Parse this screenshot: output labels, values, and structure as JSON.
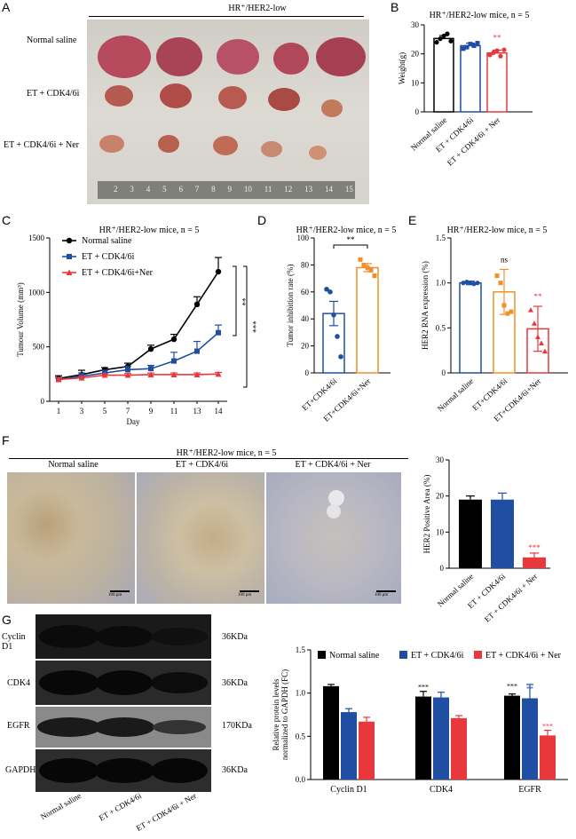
{
  "panel_letters": [
    "A",
    "B",
    "C",
    "D",
    "E",
    "F",
    "G"
  ],
  "panel_a": {
    "header": "HR⁺/HER2-low",
    "row_labels": [
      "Normal saline",
      "ET + CDK4/6i",
      "ET + CDK4/6i + Ner"
    ],
    "ruler_numbers": [
      "2",
      "3",
      "4",
      "5",
      "6",
      "7",
      "8",
      "9",
      "10",
      "11",
      "12",
      "13",
      "14",
      "15"
    ]
  },
  "ihc": {
    "header": "HR⁺/HER2-low mice, n = 5",
    "labels": [
      "Normal saline",
      "ET + CDK4/6i",
      "ET + CDK4/6i + Ner"
    ],
    "scale": "100 μm"
  },
  "blot": {
    "rows": [
      {
        "name": "Cyclin D1",
        "kda": "36KDa"
      },
      {
        "name": "CDK4",
        "kda": "36KDa"
      },
      {
        "name": "EGFR",
        "kda": "170KDa"
      },
      {
        "name": "GAPDH",
        "kda": "36KDa"
      }
    ],
    "lanes": [
      "Normal saline",
      "ET + CDK4/6i",
      "ET + CDK4/6i + Ner"
    ]
  },
  "colors": {
    "black": "#000000",
    "blue": "#1f4ea3",
    "red": "#e8383d",
    "orange": "#f0902a"
  },
  "chart_data": [
    {
      "id": "B",
      "type": "bar",
      "title": "HR⁺/HER2-low mice, n = 5",
      "ylabel": "Weight(g)",
      "ylim": [
        0,
        30
      ],
      "yticks": [
        "0",
        "10",
        "20",
        "30"
      ],
      "categories": [
        "Normal saline",
        "ET + CDK4/6i",
        "ET + CDK4/6i + Ner"
      ],
      "values": [
        25.3,
        22.8,
        20.3
      ],
      "errors": [
        1.0,
        0.9,
        1.0
      ],
      "points": [
        [
          24.0,
          25.2,
          26.2,
          26.9,
          24.4
        ],
        [
          21.8,
          22.3,
          23.4,
          22.8,
          23.7
        ],
        [
          19.6,
          20.4,
          21.1,
          19.2,
          21.4
        ]
      ],
      "sig": [
        "",
        "",
        "**"
      ]
    },
    {
      "id": "C",
      "type": "line",
      "title": "HR⁺/HER2-low mice, n = 5",
      "ylabel": "Tumour Volume (mm³)",
      "xlabel": "Day",
      "x": [
        1,
        3,
        5,
        7,
        9,
        11,
        13,
        14
      ],
      "xticks": [
        "1",
        "3",
        "5",
        "7",
        "9",
        "11",
        "13",
        "14"
      ],
      "ylim": [
        0,
        1500
      ],
      "yticks": [
        "0",
        "500",
        "1000",
        "1500"
      ],
      "series": [
        {
          "name": "Normal saline",
          "values": [
            210,
            245,
            290,
            320,
            480,
            570,
            890,
            1190
          ],
          "errors": [
            25,
            40,
            20,
            30,
            35,
            45,
            70,
            130
          ]
        },
        {
          "name": "ET + CDK4/6i",
          "values": [
            200,
            230,
            260,
            290,
            300,
            370,
            460,
            630
          ],
          "errors": [
            20,
            30,
            25,
            30,
            30,
            80,
            90,
            70
          ]
        },
        {
          "name": "ET + CDK4/6i+Ner",
          "values": [
            200,
            215,
            240,
            240,
            245,
            245,
            245,
            250
          ],
          "errors": [
            15,
            15,
            15,
            15,
            15,
            15,
            15,
            15
          ]
        }
      ],
      "sig": [
        "**",
        "***"
      ]
    },
    {
      "id": "D",
      "type": "bar",
      "title": "HR⁺/HER2-low mice, n = 5",
      "ylabel": "Tumor inhibition rate (%)",
      "ylim": [
        0,
        100
      ],
      "yticks": [
        "0",
        "20",
        "40",
        "60",
        "80",
        "100"
      ],
      "categories": [
        "ET+CDK4/6i",
        "ET+CDK4/6i+Ner"
      ],
      "values": [
        44,
        78
      ],
      "errors": [
        9,
        3
      ],
      "points": [
        [
          62,
          60,
          43,
          27,
          12
        ],
        [
          84,
          80,
          78,
          76,
          72
        ]
      ],
      "sig": "**"
    },
    {
      "id": "E",
      "type": "bar",
      "title": "HR⁺/HER2-low mice, n = 5",
      "ylabel": "HER2 RNA expression (%)",
      "ylim": [
        0,
        1.5
      ],
      "yticks": [
        "0",
        "0.5",
        "1.0",
        "1.5"
      ],
      "categories": [
        "Normal saline",
        "ET+CDK4/6i",
        "ET+CDK4/6i+Ner"
      ],
      "values": [
        1.0,
        0.9,
        0.49
      ],
      "errors": [
        0.02,
        0.25,
        0.25
      ],
      "points": [
        [
          1.0,
          1.01,
          1.0,
          0.99,
          1.0
        ],
        [
          1.08,
          1.0,
          0.75,
          0.66,
          0.68
        ],
        [
          0.7,
          0.55,
          0.4,
          0.33,
          0.24
        ]
      ],
      "sig": [
        "",
        "ns",
        "**"
      ]
    },
    {
      "id": "F",
      "type": "bar",
      "ylabel": "HER2 Positive Area (%)",
      "ylim": [
        0,
        30
      ],
      "yticks": [
        "0",
        "10",
        "20",
        "30"
      ],
      "categories": [
        "Normal saline",
        "ET + CDK4/6i",
        "ET + CDK4/6i + Ner"
      ],
      "values": [
        19,
        19,
        3
      ],
      "errors": [
        1,
        1.8,
        1.2
      ],
      "sig": [
        "",
        "",
        "***"
      ]
    },
    {
      "id": "G",
      "type": "bar",
      "ylabel": "Relative protein levels normalized to GAPDH (FC)",
      "ylim": [
        0,
        1.5
      ],
      "yticks": [
        "0.0",
        "0.5",
        "1.0",
        "1.5"
      ],
      "categories": [
        "Cyclin D1",
        "CDK4",
        "EGFR"
      ],
      "series": [
        {
          "name": "Normal saline",
          "values": [
            1.08,
            0.96,
            0.97
          ],
          "errors": [
            0.02,
            0.06,
            0.02
          ]
        },
        {
          "name": "ET + CDK4/6i",
          "values": [
            0.78,
            0.95,
            0.94
          ],
          "errors": [
            0.04,
            0.06,
            0.16
          ]
        },
        {
          "name": "ET + CDK4/6i + Ner",
          "values": [
            0.67,
            0.71,
            0.51
          ],
          "errors": [
            0.05,
            0.03,
            0.06
          ]
        }
      ],
      "sig": [
        [
          "",
          "***",
          "***"
        ],
        [
          "",
          "",
          "**"
        ],
        [
          "",
          "",
          "***"
        ]
      ]
    }
  ]
}
